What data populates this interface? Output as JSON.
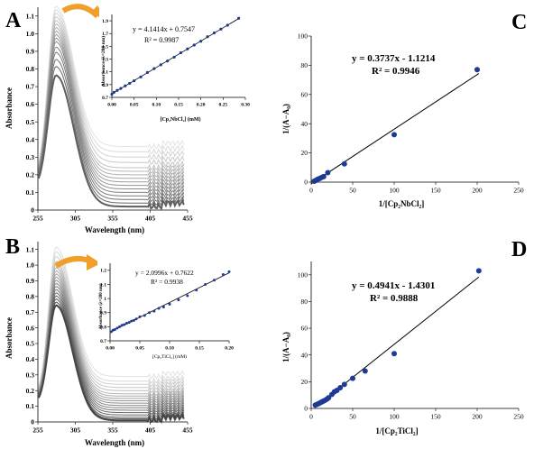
{
  "panels": {
    "A": {
      "letter": "A",
      "chart_data": {
        "type": "line",
        "xlabel": "Wavelength (nm)",
        "ylabel": "Absorbance",
        "xlim": [
          255,
          455
        ],
        "ylim": [
          0,
          1.15
        ],
        "xticks": [
          255,
          305,
          355,
          405,
          455
        ],
        "yticks": [
          0,
          0.1,
          0.2,
          0.3,
          0.4,
          0.5,
          0.6,
          0.7,
          0.8,
          0.9,
          1.0,
          1.1
        ],
        "peak_x": 280,
        "peak_width": 16,
        "tail_decay": 32,
        "grey_start": 95,
        "grey_end": 228,
        "peaks": [
          0.76,
          0.81,
          0.85,
          0.89,
          0.92,
          0.95,
          0.97,
          0.99,
          1.01,
          1.03,
          1.05,
          1.07,
          1.09,
          1.11,
          1.13,
          1.15
        ],
        "tails": [
          0.02,
          0.04,
          0.06,
          0.08,
          0.1,
          0.12,
          0.14,
          0.16,
          0.18,
          0.2,
          0.22,
          0.24,
          0.27,
          0.3,
          0.33,
          0.36
        ]
      },
      "inset": {
        "chart_data": {
          "type": "scatter",
          "xlabel": "[Cp₂NbCl₂] (mM)",
          "ylabel": "Absorbance (λ=280 nm)",
          "equation": "y = 4.1414x + 0.7547",
          "r2": "R² = 0.9987",
          "slope": 4.1414,
          "intercept": 0.7547,
          "xlim": [
            0,
            0.3
          ],
          "ylim": [
            0.7,
            2.0
          ],
          "xticks": [
            0,
            0.05,
            0.1,
            0.15,
            0.2,
            0.25,
            0.3
          ],
          "xtick_labels": [
            "0.00",
            "0.05",
            "0.10",
            "0.15",
            "0.20",
            "0.25",
            "0.30"
          ],
          "yticks": [
            0.7,
            0.9,
            1.1,
            1.3,
            1.5,
            1.7,
            1.9
          ],
          "ytick_labels": [
            "0.7",
            "0.9",
            "1.1",
            "1.3",
            "1.5",
            "1.7",
            "1.9"
          ],
          "x": [
            0.0,
            0.005,
            0.012,
            0.02,
            0.03,
            0.04,
            0.05,
            0.065,
            0.08,
            0.095,
            0.11,
            0.125,
            0.14,
            0.155,
            0.17,
            0.185,
            0.2,
            0.215,
            0.23,
            0.245,
            0.26,
            0.285
          ],
          "y": [
            0.75,
            0.78,
            0.81,
            0.84,
            0.88,
            0.92,
            0.96,
            1.02,
            1.09,
            1.15,
            1.21,
            1.27,
            1.33,
            1.4,
            1.46,
            1.52,
            1.58,
            1.65,
            1.71,
            1.77,
            1.83,
            1.94
          ]
        }
      }
    },
    "B": {
      "letter": "B",
      "chart_data": {
        "type": "line",
        "xlabel": "Wavelength (nm)",
        "ylabel": "Absorbance",
        "xlim": [
          255,
          455
        ],
        "ylim": [
          0,
          1.15
        ],
        "xticks": [
          255,
          305,
          355,
          405,
          455
        ],
        "yticks": [
          0,
          0.1,
          0.2,
          0.3,
          0.4,
          0.5,
          0.6,
          0.7,
          0.8,
          0.9,
          1.0,
          1.1
        ],
        "peak_x": 280,
        "peak_width": 15,
        "tail_decay": 30,
        "grey_start": 70,
        "grey_end": 225,
        "peaks": [
          0.74,
          0.76,
          0.78,
          0.8,
          0.82,
          0.84,
          0.86,
          0.88,
          0.9,
          0.92,
          0.94,
          0.96,
          0.98,
          1.0,
          1.02,
          1.05,
          1.08,
          1.11
        ],
        "tails": [
          0.01,
          0.02,
          0.03,
          0.045,
          0.06,
          0.075,
          0.09,
          0.105,
          0.12,
          0.135,
          0.15,
          0.165,
          0.18,
          0.2,
          0.22,
          0.24,
          0.26,
          0.29
        ]
      },
      "inset": {
        "chart_data": {
          "type": "scatter",
          "xlabel": "[Cp₂TiCl₂] (mM)",
          "ylabel": "Absorbance (λ=280 nm)",
          "equation": "y = 2.0996x + 0.7622",
          "r2": "R² = 0.9938",
          "slope": 2.0996,
          "intercept": 0.7622,
          "xlim": [
            0,
            0.2
          ],
          "ylim": [
            0.7,
            1.25
          ],
          "xticks": [
            0,
            0.05,
            0.1,
            0.15,
            0.2
          ],
          "xtick_labels": [
            "0.00",
            "0.05",
            "0.10",
            "0.15",
            "0.20"
          ],
          "yticks": [
            0.7,
            0.8,
            0.9,
            1.0,
            1.1,
            1.2
          ],
          "ytick_labels": [
            "0.7",
            "0.8",
            "0.9",
            "1",
            "1.1",
            "1.2"
          ],
          "x": [
            0.002,
            0.005,
            0.008,
            0.012,
            0.016,
            0.02,
            0.024,
            0.028,
            0.032,
            0.036,
            0.04,
            0.044,
            0.05,
            0.058,
            0.066,
            0.074,
            0.082,
            0.09,
            0.1,
            0.115,
            0.13,
            0.145,
            0.16,
            0.175,
            0.19,
            0.2
          ],
          "y": [
            0.765,
            0.775,
            0.78,
            0.79,
            0.8,
            0.81,
            0.815,
            0.825,
            0.83,
            0.84,
            0.845,
            0.855,
            0.87,
            0.88,
            0.9,
            0.91,
            0.93,
            0.94,
            0.96,
            0.99,
            1.02,
            1.06,
            1.1,
            1.13,
            1.17,
            1.19
          ]
        }
      }
    },
    "C": {
      "letter": "C",
      "chart_data": {
        "type": "scatter",
        "xlabel": "1/[Cp₂NbCl₂]",
        "ylabel": "1/(A−A₀)",
        "equation": "y = 0.3737x - 1.1214",
        "r2": "R² = 0.9946",
        "slope": 0.3737,
        "intercept": -1.1214,
        "fit_x": [
          0,
          202
        ],
        "xlim": [
          0,
          250
        ],
        "ylim": [
          0,
          100
        ],
        "xticks": [
          0,
          50,
          100,
          150,
          200,
          250
        ],
        "yticks": [
          0,
          20,
          40,
          60,
          80,
          100
        ],
        "x": [
          3.5,
          5,
          6.5,
          8,
          10,
          12.5,
          15,
          20,
          40,
          100,
          200
        ],
        "y": [
          0.6,
          1.0,
          1.5,
          2.0,
          2.5,
          3.2,
          3.8,
          6.5,
          12.5,
          32.5,
          77
        ]
      }
    },
    "D": {
      "letter": "D",
      "chart_data": {
        "type": "scatter",
        "xlabel": "1/[Cp₂TiCl₂]",
        "ylabel": "1/(A−A₀)",
        "equation": "y = 0.4941x - 1.4301",
        "r2": "R² = 0.9888",
        "slope": 0.4941,
        "intercept": -1.4301,
        "fit_x": [
          4,
          202
        ],
        "xlim": [
          0,
          250
        ],
        "ylim": [
          0,
          110
        ],
        "xticks": [
          0,
          50,
          100,
          150,
          200,
          250
        ],
        "yticks": [
          0,
          20,
          40,
          60,
          80,
          100
        ],
        "x": [
          5,
          7,
          9,
          11,
          13,
          15,
          17,
          19,
          21,
          25,
          28,
          31,
          35,
          40,
          50,
          65,
          100,
          202
        ],
        "y": [
          2.5,
          3.0,
          3.6,
          4.3,
          5.0,
          5.6,
          6.2,
          7.0,
          8.0,
          10.5,
          12.5,
          13.5,
          15.5,
          18.0,
          22.5,
          28.0,
          41.0,
          103
        ]
      }
    }
  },
  "colors": {
    "marker": "#1f3a93",
    "arrow": "#f0a02a",
    "axis": "#000000",
    "darkest_curve": "#404040"
  }
}
